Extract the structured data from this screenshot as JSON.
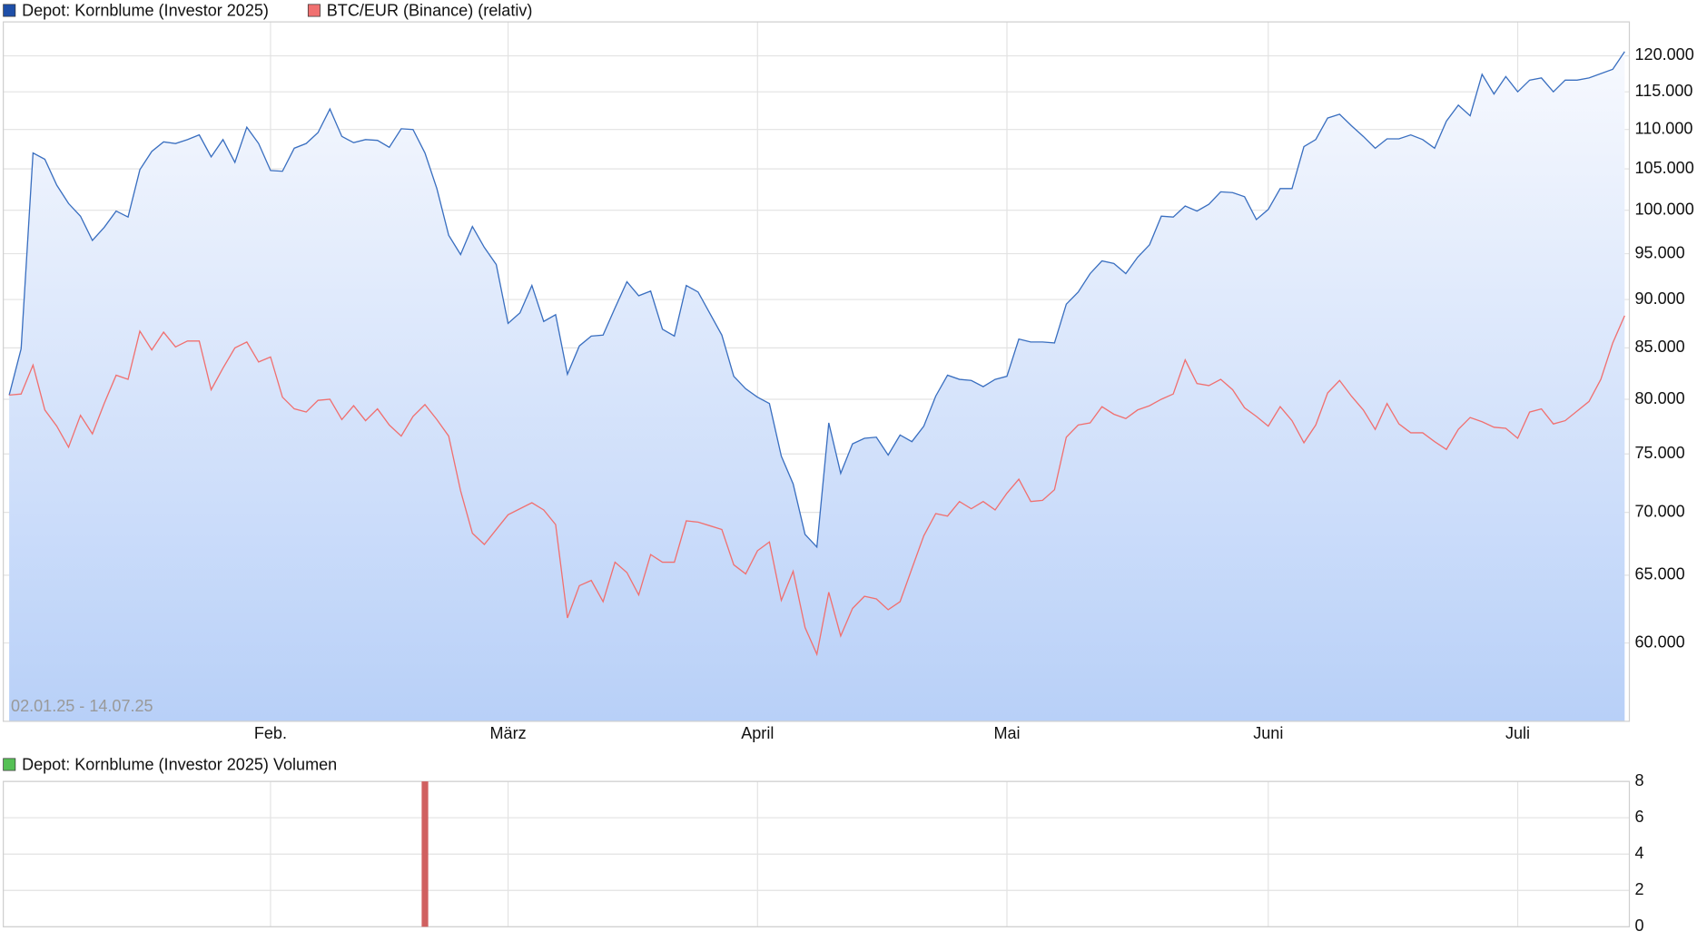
{
  "chart_data": [
    {
      "type": "line",
      "subtitle": "02.01.25 - 14.07.25",
      "log": true,
      "grid": true,
      "legend": "top-left",
      "xlim": [
        -0.5,
        136.4
      ],
      "xticks": [
        {
          "value": 22,
          "label": "Feb."
        },
        {
          "value": 42,
          "label": "März"
        },
        {
          "value": 63,
          "label": "April"
        },
        {
          "value": 84,
          "label": "Mai"
        },
        {
          "value": 106,
          "label": "Juni"
        },
        {
          "value": 127,
          "label": "Juli"
        }
      ],
      "ylim": [
        54700,
        124900
      ],
      "yticks": [
        {
          "value": 60000,
          "label": "60.000"
        },
        {
          "value": 65000,
          "label": "65.000"
        },
        {
          "value": 70000,
          "label": "70.000"
        },
        {
          "value": 75000,
          "label": "75.000"
        },
        {
          "value": 80000,
          "label": "80.000"
        },
        {
          "value": 85000,
          "label": "85.000"
        },
        {
          "value": 90000,
          "label": "90.000"
        },
        {
          "value": 95000,
          "label": "95.000"
        },
        {
          "value": 100000,
          "label": "100.000"
        },
        {
          "value": 105000,
          "label": "105.000"
        },
        {
          "value": 110000,
          "label": "110.000"
        },
        {
          "value": 115000,
          "label": "115.000"
        },
        {
          "value": 120000,
          "label": "120.000"
        }
      ],
      "series": [
        {
          "name": "Depot: Kornblume (Investor 2025)",
          "color": "#3a6fc0",
          "area": true,
          "values": [
            80400,
            84900,
            107000,
            106200,
            103000,
            100800,
            99300,
            96500,
            98000,
            99900,
            99200,
            104900,
            107200,
            108400,
            108200,
            108700,
            109300,
            106500,
            108700,
            105800,
            110300,
            108200,
            104800,
            104700,
            107600,
            108200,
            109600,
            112700,
            109100,
            108300,
            108700,
            108600,
            107700,
            110100,
            110000,
            107000,
            102600,
            97100,
            94900,
            98100,
            95700,
            93800,
            87500,
            88600,
            91500,
            87700,
            88400,
            82400,
            85200,
            86200,
            86300,
            89100,
            91900,
            90400,
            90900,
            86900,
            86200,
            91500,
            90800,
            88500,
            86300,
            82200,
            81000,
            80200,
            79600,
            74800,
            72400,
            68200,
            67200,
            77800,
            73300,
            75900,
            76400,
            76500,
            74900,
            76700,
            76100,
            77500,
            80300,
            82300,
            81900,
            81800,
            81200,
            81900,
            82200,
            85900,
            85600,
            85600,
            85500,
            89500,
            90800,
            92800,
            94200,
            93900,
            92800,
            94600,
            96000,
            99300,
            99200,
            100500,
            99900,
            100700,
            102200,
            102100,
            101600,
            98900,
            100100,
            102600,
            102600,
            107800,
            108700,
            111500,
            112000,
            110500,
            109100,
            107600,
            108800,
            108800,
            109300,
            108700,
            107600,
            111100,
            113200,
            111800,
            117400,
            114700,
            117100,
            115000,
            116600,
            116900,
            115000,
            116600,
            116600,
            116900,
            117500,
            118100,
            120600
          ]
        },
        {
          "name": "BTC/EUR (Binance) (relativ)",
          "color": "#f07070",
          "values": [
            80400,
            80500,
            83300,
            79000,
            77500,
            75600,
            78500,
            76800,
            79600,
            82300,
            81900,
            86700,
            84800,
            86600,
            85100,
            85700,
            85700,
            80900,
            83000,
            85000,
            85600,
            83600,
            84100,
            80200,
            79100,
            78800,
            79900,
            80000,
            78100,
            79400,
            78000,
            79100,
            77600,
            76600,
            78400,
            79500,
            78100,
            76600,
            71800,
            68300,
            67400,
            68600,
            69800,
            70300,
            70800,
            70200,
            69000,
            61800,
            64200,
            64600,
            63000,
            66000,
            65200,
            63500,
            66600,
            66000,
            66000,
            69300,
            69200,
            68900,
            68600,
            65800,
            65100,
            66900,
            67600,
            63100,
            65300,
            61100,
            59200,
            63700,
            60500,
            62500,
            63400,
            63200,
            62400,
            63000,
            65500,
            68100,
            69900,
            69700,
            70900,
            70300,
            70900,
            70200,
            71600,
            72800,
            70900,
            71000,
            71900,
            76500,
            77600,
            77800,
            79300,
            78600,
            78200,
            79000,
            79400,
            80000,
            80500,
            83800,
            81500,
            81300,
            81900,
            80900,
            79200,
            78400,
            77500,
            79300,
            78000,
            76000,
            77600,
            80600,
            81800,
            80300,
            79000,
            77200,
            79600,
            77700,
            76900,
            76900,
            76100,
            75400,
            77200,
            78300,
            77900,
            77400,
            77300,
            76400,
            78800,
            79100,
            77700,
            78000,
            78900,
            79800,
            81900,
            85500,
            88300
          ]
        }
      ]
    },
    {
      "type": "bar",
      "grid": true,
      "legend": "top-left",
      "xlim": [
        -0.5,
        136.4
      ],
      "xticks": [
        22,
        42,
        63,
        84,
        106,
        127
      ],
      "ylim": [
        0,
        8
      ],
      "yticks": [
        0,
        2,
        4,
        6,
        8
      ],
      "series": [
        {
          "name": "Depot: Kornblume (Investor 2025) Volumen",
          "color": "#d06060",
          "x": [
            35
          ],
          "values": [
            8
          ]
        }
      ]
    }
  ]
}
